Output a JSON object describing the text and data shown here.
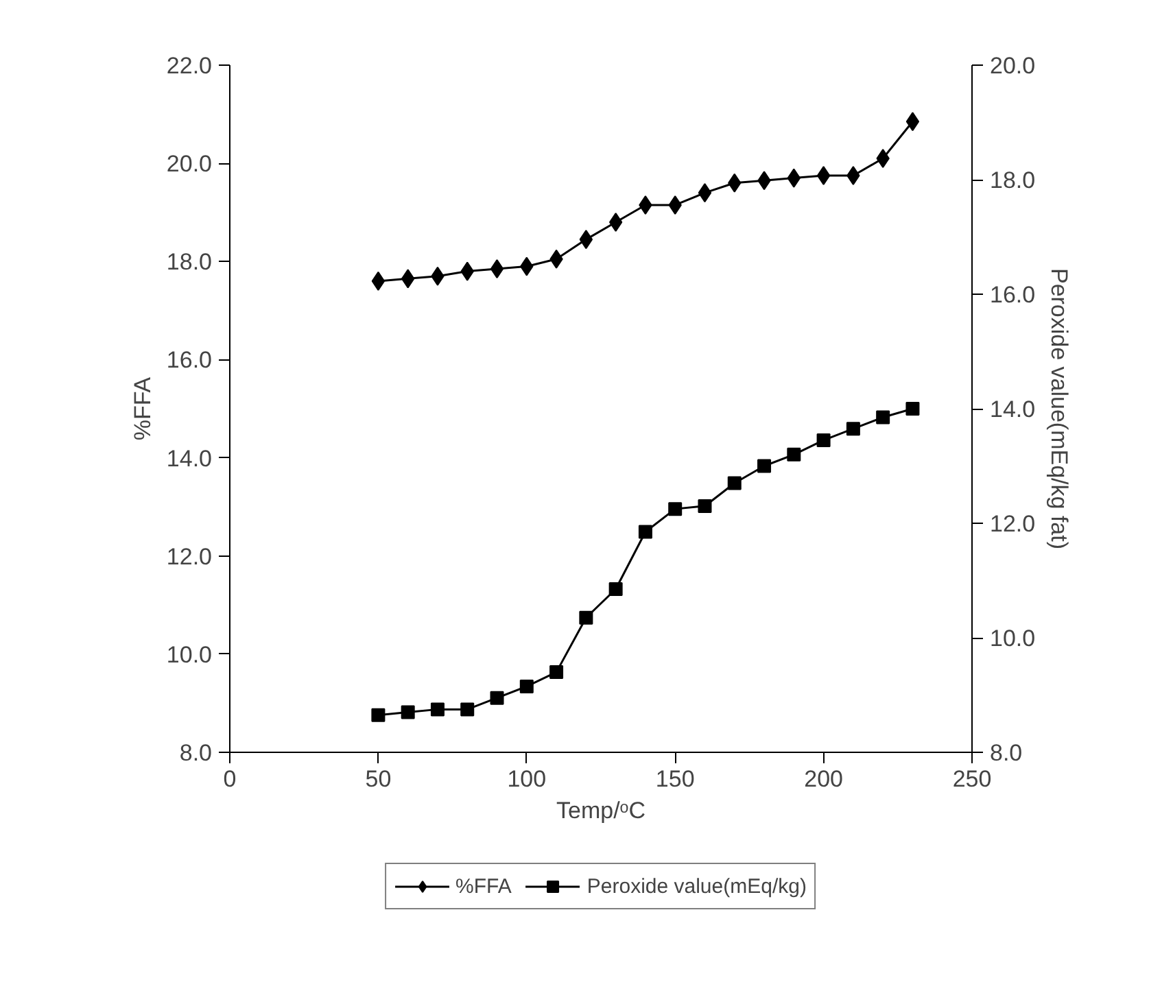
{
  "chart_data": {
    "type": "line",
    "xlabel": "Temp/ᵒC",
    "ylabel": "%FFA",
    "y2label": "Peroxide value(mEq/kg fat)",
    "x": [
      50,
      60,
      70,
      80,
      90,
      100,
      110,
      120,
      130,
      140,
      150,
      160,
      170,
      180,
      190,
      200,
      210,
      220,
      230
    ],
    "series": [
      {
        "name": "%FFA",
        "color": "#000000",
        "marker": "diamond",
        "values": [
          17.6,
          17.65,
          17.7,
          17.8,
          17.85,
          17.9,
          18.05,
          18.45,
          18.8,
          19.15,
          19.15,
          19.4,
          19.6,
          19.65,
          19.7,
          19.75,
          19.75,
          20.1,
          20.85
        ]
      },
      {
        "name": "Peroxide value(mEq/kg)",
        "color": "#000000",
        "marker": "square",
        "axis": "y2",
        "values": [
          8.65,
          8.7,
          8.75,
          8.75,
          8.95,
          9.15,
          9.4,
          10.35,
          10.85,
          11.85,
          12.25,
          12.3,
          12.7,
          13.0,
          13.2,
          13.45,
          13.65,
          13.85,
          14.0
        ]
      }
    ],
    "xlim": [
      0,
      250
    ],
    "xticks": [
      0,
      50,
      100,
      150,
      200,
      250
    ],
    "ylim": [
      8,
      22
    ],
    "yticks": [
      {
        "value": 8,
        "label": "8.0"
      },
      {
        "value": 10,
        "label": "10.0"
      },
      {
        "value": 12,
        "label": "12.0"
      },
      {
        "value": 14,
        "label": "14.0"
      },
      {
        "value": 16,
        "label": "16.0"
      },
      {
        "value": 18,
        "label": "18.0"
      },
      {
        "value": 20,
        "label": "20.0"
      },
      {
        "value": 22,
        "label": "22.0"
      }
    ],
    "y2lim": [
      8,
      20
    ],
    "y2ticks": [
      {
        "value": 8,
        "label": "8.0"
      },
      {
        "value": 10,
        "label": "10.0"
      },
      {
        "value": 12,
        "label": "12.0"
      },
      {
        "value": 14,
        "label": "14.0"
      },
      {
        "value": 16,
        "label": "16.0"
      },
      {
        "value": 18,
        "label": "18.0"
      },
      {
        "value": 20,
        "label": "20.0"
      }
    ],
    "grid": false,
    "legend": "bottom"
  }
}
